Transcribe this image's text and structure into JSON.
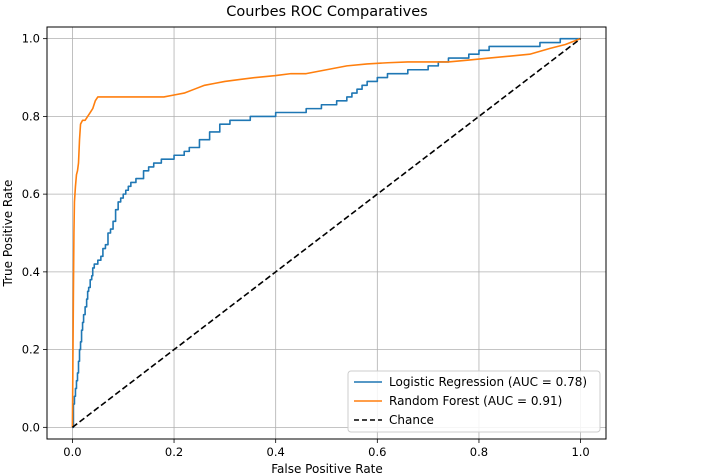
{
  "chart_data": {
    "type": "line",
    "title": "Courbes ROC Comparatives",
    "xlabel": "False Positive Rate",
    "ylabel": "True Positive Rate",
    "xlim": [
      -0.05,
      1.05
    ],
    "ylim": [
      -0.03,
      1.03
    ],
    "xticks": [
      "0.0",
      "0.2",
      "0.4",
      "0.6",
      "0.8",
      "1.0"
    ],
    "yticks": [
      "0.0",
      "0.2",
      "0.4",
      "0.6",
      "0.8",
      "1.0"
    ],
    "grid": true,
    "legend_position": "lower-right",
    "series": [
      {
        "name": "Logistic Regression (AUC = 0.78)",
        "color": "#1f77b4",
        "style": "step",
        "x": [
          0.0,
          0.002,
          0.004,
          0.006,
          0.008,
          0.01,
          0.012,
          0.014,
          0.016,
          0.018,
          0.02,
          0.022,
          0.025,
          0.028,
          0.03,
          0.032,
          0.035,
          0.038,
          0.04,
          0.043,
          0.046,
          0.05,
          0.053,
          0.056,
          0.06,
          0.065,
          0.07,
          0.075,
          0.08,
          0.085,
          0.09,
          0.095,
          0.1,
          0.105,
          0.11,
          0.115,
          0.12,
          0.125,
          0.13,
          0.14,
          0.15,
          0.16,
          0.17,
          0.175,
          0.18,
          0.2,
          0.22,
          0.23,
          0.25,
          0.27,
          0.29,
          0.31,
          0.32,
          0.33,
          0.34,
          0.35,
          0.36,
          0.37,
          0.38,
          0.39,
          0.4,
          0.43,
          0.46,
          0.49,
          0.52,
          0.54,
          0.55,
          0.56,
          0.57,
          0.58,
          0.59,
          0.6,
          0.61,
          0.62,
          0.63,
          0.64,
          0.65,
          0.66,
          0.68,
          0.7,
          0.72,
          0.74,
          0.76,
          0.78,
          0.8,
          0.81,
          0.82,
          0.84,
          0.86,
          0.88,
          0.9,
          0.92,
          0.94,
          0.96,
          1.0
        ],
        "y": [
          0.0,
          0.06,
          0.08,
          0.1,
          0.12,
          0.14,
          0.17,
          0.2,
          0.22,
          0.25,
          0.27,
          0.29,
          0.31,
          0.33,
          0.35,
          0.36,
          0.38,
          0.39,
          0.41,
          0.42,
          0.42,
          0.43,
          0.43,
          0.44,
          0.46,
          0.47,
          0.5,
          0.51,
          0.53,
          0.56,
          0.58,
          0.59,
          0.6,
          0.61,
          0.62,
          0.63,
          0.63,
          0.64,
          0.64,
          0.66,
          0.67,
          0.68,
          0.68,
          0.69,
          0.69,
          0.7,
          0.71,
          0.72,
          0.74,
          0.76,
          0.78,
          0.79,
          0.79,
          0.79,
          0.79,
          0.8,
          0.8,
          0.8,
          0.8,
          0.8,
          0.81,
          0.81,
          0.82,
          0.83,
          0.84,
          0.85,
          0.86,
          0.87,
          0.88,
          0.89,
          0.89,
          0.9,
          0.9,
          0.91,
          0.91,
          0.91,
          0.91,
          0.92,
          0.92,
          0.93,
          0.94,
          0.95,
          0.95,
          0.96,
          0.97,
          0.97,
          0.98,
          0.98,
          0.98,
          0.98,
          0.98,
          0.99,
          0.99,
          1.0,
          1.0
        ]
      },
      {
        "name": "Random Forest (AUC = 0.91)",
        "color": "#ff7f0e",
        "style": "line",
        "x": [
          0.0,
          0.002,
          0.003,
          0.004,
          0.005,
          0.006,
          0.008,
          0.01,
          0.012,
          0.014,
          0.016,
          0.02,
          0.025,
          0.03,
          0.035,
          0.04,
          0.045,
          0.05,
          0.06,
          0.08,
          0.1,
          0.12,
          0.15,
          0.18,
          0.2,
          0.22,
          0.24,
          0.26,
          0.28,
          0.3,
          0.33,
          0.36,
          0.4,
          0.43,
          0.46,
          0.5,
          0.54,
          0.58,
          0.62,
          0.66,
          0.7,
          0.74,
          0.78,
          0.82,
          0.86,
          0.9,
          0.94,
          0.97,
          1.0
        ],
        "y": [
          0.0,
          0.35,
          0.5,
          0.58,
          0.6,
          0.62,
          0.65,
          0.66,
          0.68,
          0.74,
          0.78,
          0.79,
          0.79,
          0.8,
          0.81,
          0.82,
          0.84,
          0.85,
          0.85,
          0.85,
          0.85,
          0.85,
          0.85,
          0.85,
          0.855,
          0.86,
          0.87,
          0.88,
          0.885,
          0.89,
          0.895,
          0.9,
          0.905,
          0.91,
          0.91,
          0.92,
          0.93,
          0.935,
          0.938,
          0.94,
          0.94,
          0.94,
          0.945,
          0.95,
          0.955,
          0.96,
          0.975,
          0.985,
          1.0
        ]
      },
      {
        "name": "Chance",
        "color": "#000000",
        "style": "dashed",
        "x": [
          0.0,
          1.0
        ],
        "y": [
          0.0,
          1.0
        ]
      }
    ]
  }
}
